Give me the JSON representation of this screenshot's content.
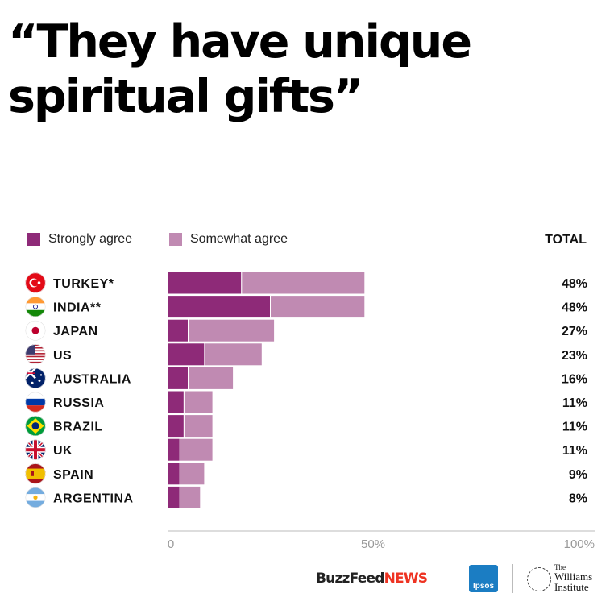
{
  "title_lines": [
    "“They have unique",
    "spiritual gifts”"
  ],
  "legend": [
    {
      "label": "Strongly agree",
      "color": "#8e2a78"
    },
    {
      "label": "Somewhat agree",
      "color": "#c08ab2"
    }
  ],
  "total_header": "TOTAL",
  "chart_data": {
    "type": "bar",
    "orientation": "horizontal",
    "stacked": true,
    "title": "“They have unique spiritual gifts”",
    "categories": [
      "TURKEY*",
      "INDIA**",
      "JAPAN",
      "US",
      "AUSTRALIA",
      "RUSSIA",
      "BRAZIL",
      "UK",
      "SPAIN",
      "ARGENTINA"
    ],
    "series": [
      {
        "name": "Strongly agree",
        "values": [
          18,
          25,
          5,
          9,
          5,
          4,
          4,
          3,
          3,
          3
        ]
      },
      {
        "name": "Somewhat agree",
        "values": [
          30,
          23,
          21,
          14,
          11,
          7,
          7,
          8,
          6,
          5
        ]
      }
    ],
    "totals": [
      "48%",
      "48%",
      "27%",
      "23%",
      "16%",
      "11%",
      "11%",
      "11%",
      "9%",
      "8%"
    ],
    "xlim": [
      0,
      100
    ],
    "xticks": [
      "0",
      "50%",
      "100%"
    ],
    "grid": false,
    "legend_position": "top-left"
  },
  "flags": [
    {
      "name": "turkey-flag-icon",
      "colors": [
        "#e30a17",
        "#ffffff"
      ]
    },
    {
      "name": "india-flag-icon",
      "colors": [
        "#ff9933",
        "#ffffff",
        "#138808"
      ]
    },
    {
      "name": "japan-flag-icon",
      "colors": [
        "#ffffff",
        "#bc002d"
      ]
    },
    {
      "name": "us-flag-icon",
      "colors": [
        "#b22234",
        "#ffffff",
        "#3c3b6e"
      ]
    },
    {
      "name": "australia-flag-icon",
      "colors": [
        "#012169",
        "#ffffff",
        "#e4002b"
      ]
    },
    {
      "name": "russia-flag-icon",
      "colors": [
        "#ffffff",
        "#0039a6",
        "#d52b1e"
      ]
    },
    {
      "name": "brazil-flag-icon",
      "colors": [
        "#009c3b",
        "#ffdf00",
        "#002776"
      ]
    },
    {
      "name": "uk-flag-icon",
      "colors": [
        "#012169",
        "#ffffff",
        "#c8102e"
      ]
    },
    {
      "name": "spain-flag-icon",
      "colors": [
        "#aa151b",
        "#f1bf00"
      ]
    },
    {
      "name": "argentina-flag-icon",
      "colors": [
        "#74acdf",
        "#ffffff",
        "#f6b40e"
      ]
    }
  ],
  "logos": {
    "buzzfeed_main": "BuzzFeed",
    "buzzfeed_news": "NEWS",
    "ipsos": "Ipsos",
    "williams_line1": "The",
    "williams_line2": "Williams",
    "williams_line3": "Institute"
  }
}
